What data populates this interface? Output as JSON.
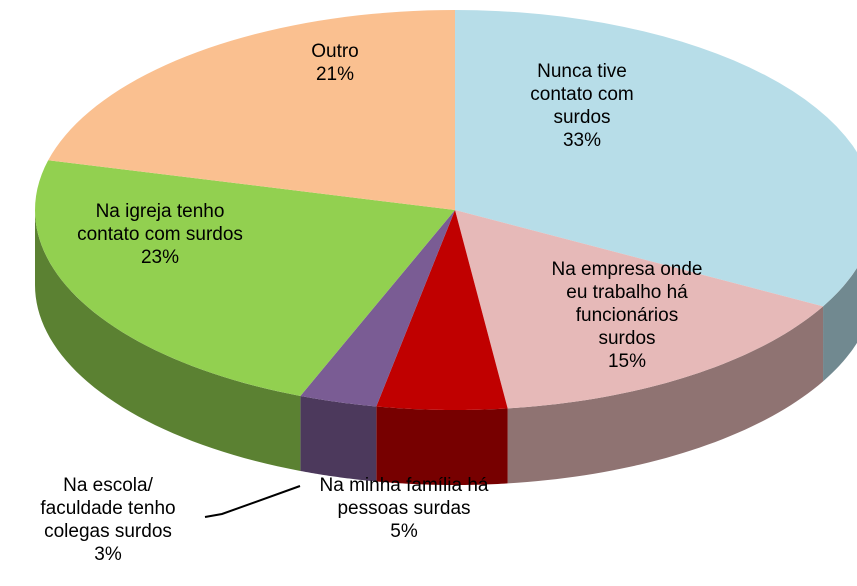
{
  "chart_data": {
    "type": "pie3d",
    "categories": [
      "Nunca tive contato com surdos",
      "Na empresa onde eu trabalho há funcionários surdos",
      "Na minha família há pessoas surdas",
      "Na escola/ faculdade tenho colegas surdos",
      "Na igreja tenho contato com surdos",
      "Outro"
    ],
    "values": [
      33,
      15,
      5,
      3,
      23,
      21
    ],
    "value_labels": [
      "33%",
      "15%",
      "5%",
      "3%",
      "23%",
      "21%"
    ],
    "colors": [
      "#b7dde8",
      "#e6b9b8",
      "#c00000",
      "#7a5c94",
      "#92d050",
      "#fac090"
    ]
  }
}
